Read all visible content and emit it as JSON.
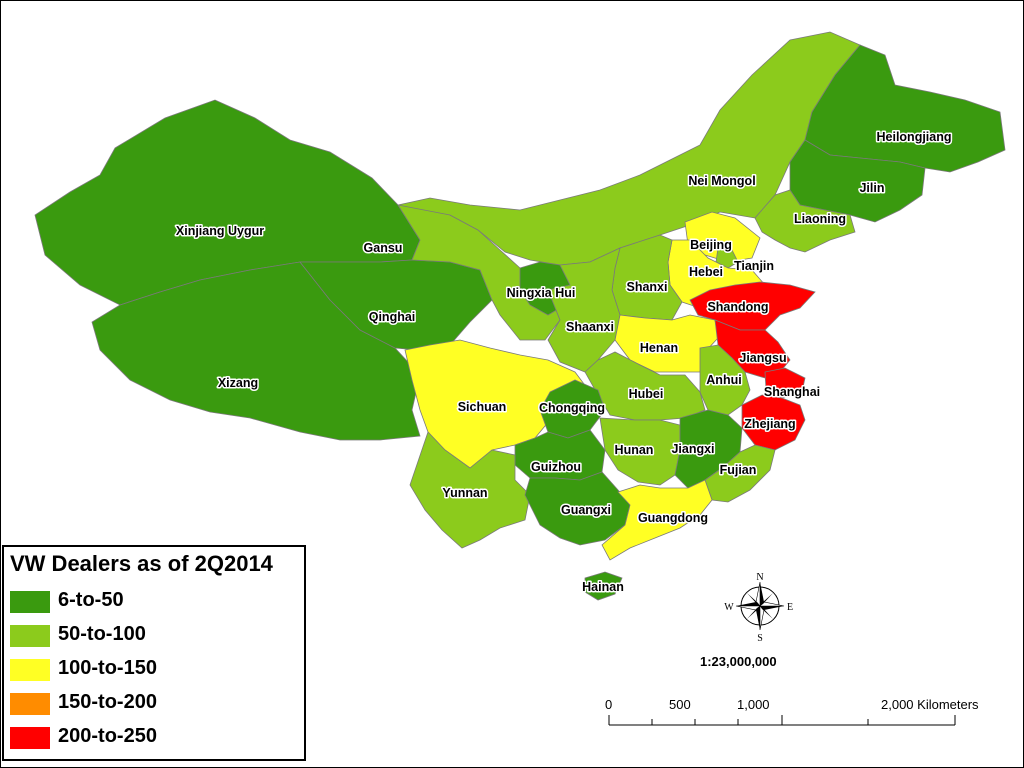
{
  "legend": {
    "title": "VW Dealers as of 2Q2014",
    "classes": [
      {
        "label": "6-to-50",
        "color": "#3a9a0f"
      },
      {
        "label": "50-to-100",
        "color": "#8ccb1c"
      },
      {
        "label": "100-to-150",
        "color": "#ffff24"
      },
      {
        "label": "150-to-200",
        "color": "#ff8c00"
      },
      {
        "label": "200-to-250",
        "color": "#ff0000"
      }
    ]
  },
  "provinces": {
    "xinjiang": {
      "name": "Xinjiang Uygur",
      "class": 0
    },
    "xizang": {
      "name": "Xizang",
      "class": 0
    },
    "qinghai": {
      "name": "Qinghai",
      "class": 0
    },
    "gansu": {
      "name": "Gansu",
      "class": 1
    },
    "neimongol": {
      "name": "Nei Mongol",
      "class": 1
    },
    "heilongjiang": {
      "name": "Heilongjiang",
      "class": 0
    },
    "jilin": {
      "name": "Jilin",
      "class": 0
    },
    "liaoning": {
      "name": "Liaoning",
      "class": 1
    },
    "beijing": {
      "name": "Beijing",
      "class": 2
    },
    "tianjin": {
      "name": "Tianjin",
      "class": 1
    },
    "hebei": {
      "name": "Hebei",
      "class": 2
    },
    "shanxi": {
      "name": "Shanxi",
      "class": 1
    },
    "ningxia": {
      "name": "Ningxia Hui",
      "class": 0
    },
    "shaanxi": {
      "name": "Shaanxi",
      "class": 1
    },
    "shandong": {
      "name": "Shandong",
      "class": 4
    },
    "henan": {
      "name": "Henan",
      "class": 2
    },
    "jiangsu": {
      "name": "Jiangsu",
      "class": 4
    },
    "anhui": {
      "name": "Anhui",
      "class": 1
    },
    "shanghai": {
      "name": "Shanghai",
      "class": 4
    },
    "zhejiang": {
      "name": "Zhejiang",
      "class": 4
    },
    "hubei": {
      "name": "Hubei",
      "class": 1
    },
    "sichuan": {
      "name": "Sichuan",
      "class": 2
    },
    "chongqing": {
      "name": "Chongqing",
      "class": 0
    },
    "hunan": {
      "name": "Hunan",
      "class": 1
    },
    "jiangxi": {
      "name": "Jiangxi",
      "class": 0
    },
    "fujian": {
      "name": "Fujian",
      "class": 1
    },
    "guizhou": {
      "name": "Guizhou",
      "class": 0
    },
    "yunnan": {
      "name": "Yunnan",
      "class": 1
    },
    "guangxi": {
      "name": "Guangxi",
      "class": 0
    },
    "guangdong": {
      "name": "Guangdong",
      "class": 2
    },
    "hainan": {
      "name": "Hainan",
      "class": 0
    }
  },
  "compass": {
    "n": "N",
    "s": "S",
    "e": "E",
    "w": "W"
  },
  "scale": {
    "ratio": "1:23,000,000",
    "ticks": [
      "0",
      "500",
      "1,000",
      "2,000 Kilometers"
    ]
  }
}
